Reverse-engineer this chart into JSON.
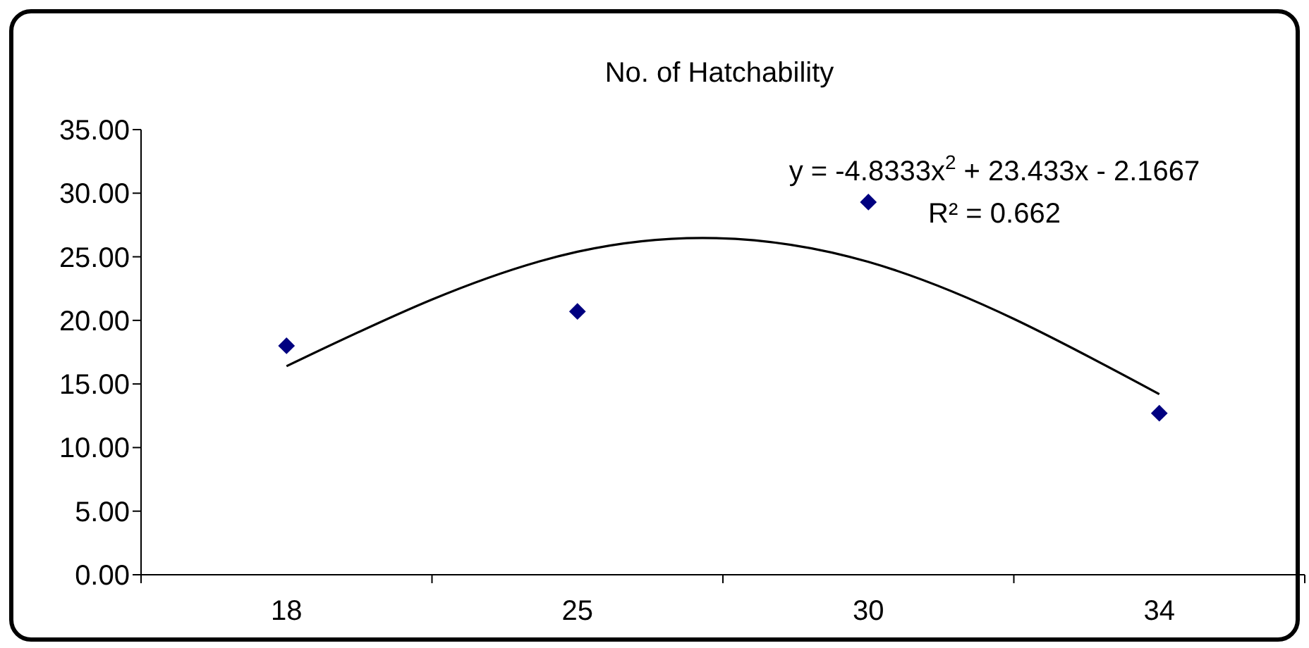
{
  "chart_data": {
    "type": "scatter",
    "title": "No. of Hatchability",
    "categories": [
      "18",
      "25",
      "30",
      "34"
    ],
    "ylim": [
      0,
      35
    ],
    "yticks": [
      {
        "value": 0,
        "label": "0.00"
      },
      {
        "value": 5,
        "label": "5.00"
      },
      {
        "value": 10,
        "label": "10.00"
      },
      {
        "value": 15,
        "label": "15.00"
      },
      {
        "value": 20,
        "label": "20.00"
      },
      {
        "value": 25,
        "label": "25.00"
      },
      {
        "value": 30,
        "label": "30.00"
      },
      {
        "value": 35,
        "label": "35.00"
      }
    ],
    "series": [
      {
        "type": "scatter",
        "color": "#000080",
        "marker": "diamond",
        "values": [
          18.0,
          20.7,
          29.3,
          12.7
        ]
      },
      {
        "type": "line",
        "color": "#000000",
        "marker": "none",
        "values": [
          16.4,
          25.4,
          24.6,
          14.2
        ]
      }
    ],
    "annotations": [
      "y = -4.8333x$^{2}$ + 23.433x - 2.1667",
      "R² = 0.662"
    ]
  }
}
